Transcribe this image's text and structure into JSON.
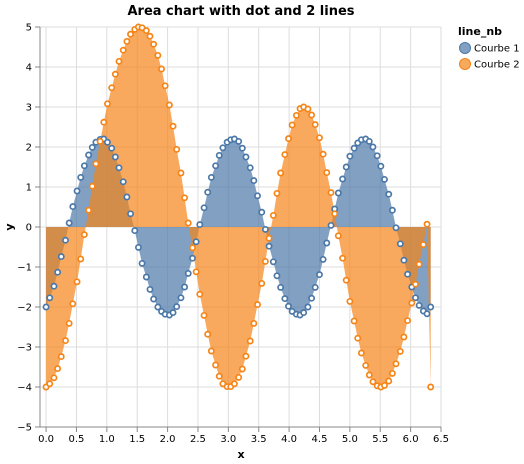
{
  "chart_data": {
    "type": "area",
    "title": "Area chart with dot and 2 lines",
    "xlabel": "x",
    "ylabel": "y",
    "xlim": [
      -0.1,
      6.5
    ],
    "ylim": [
      -5,
      5
    ],
    "x_ticks": [
      "0.0",
      "0.5",
      "1.0",
      "1.5",
      "2.0",
      "2.5",
      "3.0",
      "3.5",
      "4.0",
      "4.5",
      "5.0",
      "5.5",
      "6.0",
      "6.5"
    ],
    "y_ticks": [
      "−5",
      "−4",
      "−3",
      "−2",
      "−1",
      "0",
      "1",
      "2",
      "3",
      "4",
      "5"
    ],
    "grid": true,
    "legend": {
      "title": "line_nb",
      "placement": "top-right"
    },
    "x": [
      0.0,
      0.06,
      0.13,
      0.19,
      0.25,
      0.32,
      0.38,
      0.44,
      0.51,
      0.57,
      0.63,
      0.7,
      0.76,
      0.82,
      0.89,
      0.95,
      1.01,
      1.08,
      1.14,
      1.2,
      1.27,
      1.33,
      1.39,
      1.46,
      1.52,
      1.58,
      1.65,
      1.71,
      1.77,
      1.84,
      1.9,
      1.96,
      2.03,
      2.09,
      2.15,
      2.22,
      2.28,
      2.34,
      2.41,
      2.47,
      2.53,
      2.6,
      2.66,
      2.72,
      2.79,
      2.85,
      2.91,
      2.98,
      3.04,
      3.1,
      3.17,
      3.23,
      3.29,
      3.36,
      3.42,
      3.48,
      3.55,
      3.61,
      3.67,
      3.74,
      3.8,
      3.86,
      3.93,
      3.99,
      4.05,
      4.12,
      4.18,
      4.24,
      4.31,
      4.37,
      4.43,
      4.5,
      4.56,
      4.62,
      4.69,
      4.75,
      4.81,
      4.88,
      4.94,
      5.0,
      5.07,
      5.13,
      5.19,
      5.26,
      5.32,
      5.38,
      5.45,
      5.51,
      5.57,
      5.64,
      5.7,
      5.76,
      5.83,
      5.89,
      5.95,
      6.02,
      6.08,
      6.14,
      6.21,
      6.27,
      6.33
    ],
    "series": [
      {
        "name": "Courbe 1",
        "color": "#4c78a8",
        "values": [
          -2.0,
          -1.77,
          -1.48,
          -1.13,
          -0.74,
          -0.33,
          0.1,
          0.51,
          0.9,
          1.24,
          1.53,
          1.8,
          1.99,
          2.12,
          2.19,
          2.2,
          2.12,
          1.97,
          1.75,
          1.48,
          1.13,
          0.75,
          0.33,
          -0.09,
          -0.51,
          -0.91,
          -1.25,
          -1.56,
          -1.8,
          -2.0,
          -2.11,
          -2.18,
          -2.2,
          -2.14,
          -1.99,
          -1.77,
          -1.5,
          -1.16,
          -0.78,
          -0.37,
          0.06,
          0.48,
          0.87,
          1.24,
          1.53,
          1.79,
          1.98,
          2.12,
          2.18,
          2.2,
          2.14,
          1.97,
          1.75,
          1.48,
          1.16,
          0.78,
          0.37,
          -0.06,
          -0.48,
          -0.87,
          -1.22,
          -1.51,
          -1.79,
          -1.98,
          -2.11,
          -2.18,
          -2.2,
          -2.14,
          -2.0,
          -1.78,
          -1.51,
          -1.19,
          -0.81,
          -0.4,
          0.04,
          0.45,
          0.85,
          1.2,
          1.5,
          1.77,
          1.97,
          2.1,
          2.18,
          2.2,
          2.14,
          2.0,
          1.78,
          1.52,
          1.19,
          0.82,
          0.42,
          -0.02,
          -0.42,
          -0.83,
          -1.18,
          -1.5,
          -1.77,
          -1.96,
          -2.1,
          -2.17,
          -2.0
        ]
      },
      {
        "name": "Courbe 2",
        "color": "#f58518",
        "values": [
          -4.0,
          -3.92,
          -3.77,
          -3.54,
          -3.24,
          -2.84,
          -2.41,
          -1.92,
          -1.37,
          -0.8,
          -0.19,
          0.42,
          1.02,
          1.58,
          2.14,
          2.62,
          3.08,
          3.48,
          3.82,
          4.14,
          4.42,
          4.64,
          4.82,
          4.94,
          5.0,
          4.98,
          4.91,
          4.77,
          4.57,
          4.29,
          3.95,
          3.53,
          3.05,
          2.52,
          1.94,
          1.35,
          0.73,
          0.1,
          -0.52,
          -1.12,
          -1.68,
          -2.21,
          -2.68,
          -3.1,
          -3.45,
          -3.73,
          -3.92,
          -3.99,
          -3.99,
          -3.92,
          -3.76,
          -3.55,
          -3.23,
          -2.85,
          -2.41,
          -1.94,
          -1.41,
          -0.86,
          -0.28,
          0.29,
          0.84,
          1.35,
          1.81,
          2.21,
          2.55,
          2.79,
          2.96,
          3.0,
          2.95,
          2.8,
          2.56,
          2.23,
          1.82,
          1.36,
          0.86,
          0.33,
          -0.22,
          -0.78,
          -1.33,
          -1.86,
          -2.35,
          -2.78,
          -3.15,
          -3.46,
          -3.7,
          -3.87,
          -3.97,
          -4.0,
          -3.96,
          -3.85,
          -3.66,
          -3.42,
          -3.11,
          -2.75,
          -2.34,
          -1.9,
          -1.43,
          -0.93,
          -0.44,
          0.07,
          -4.0
        ]
      }
    ]
  }
}
